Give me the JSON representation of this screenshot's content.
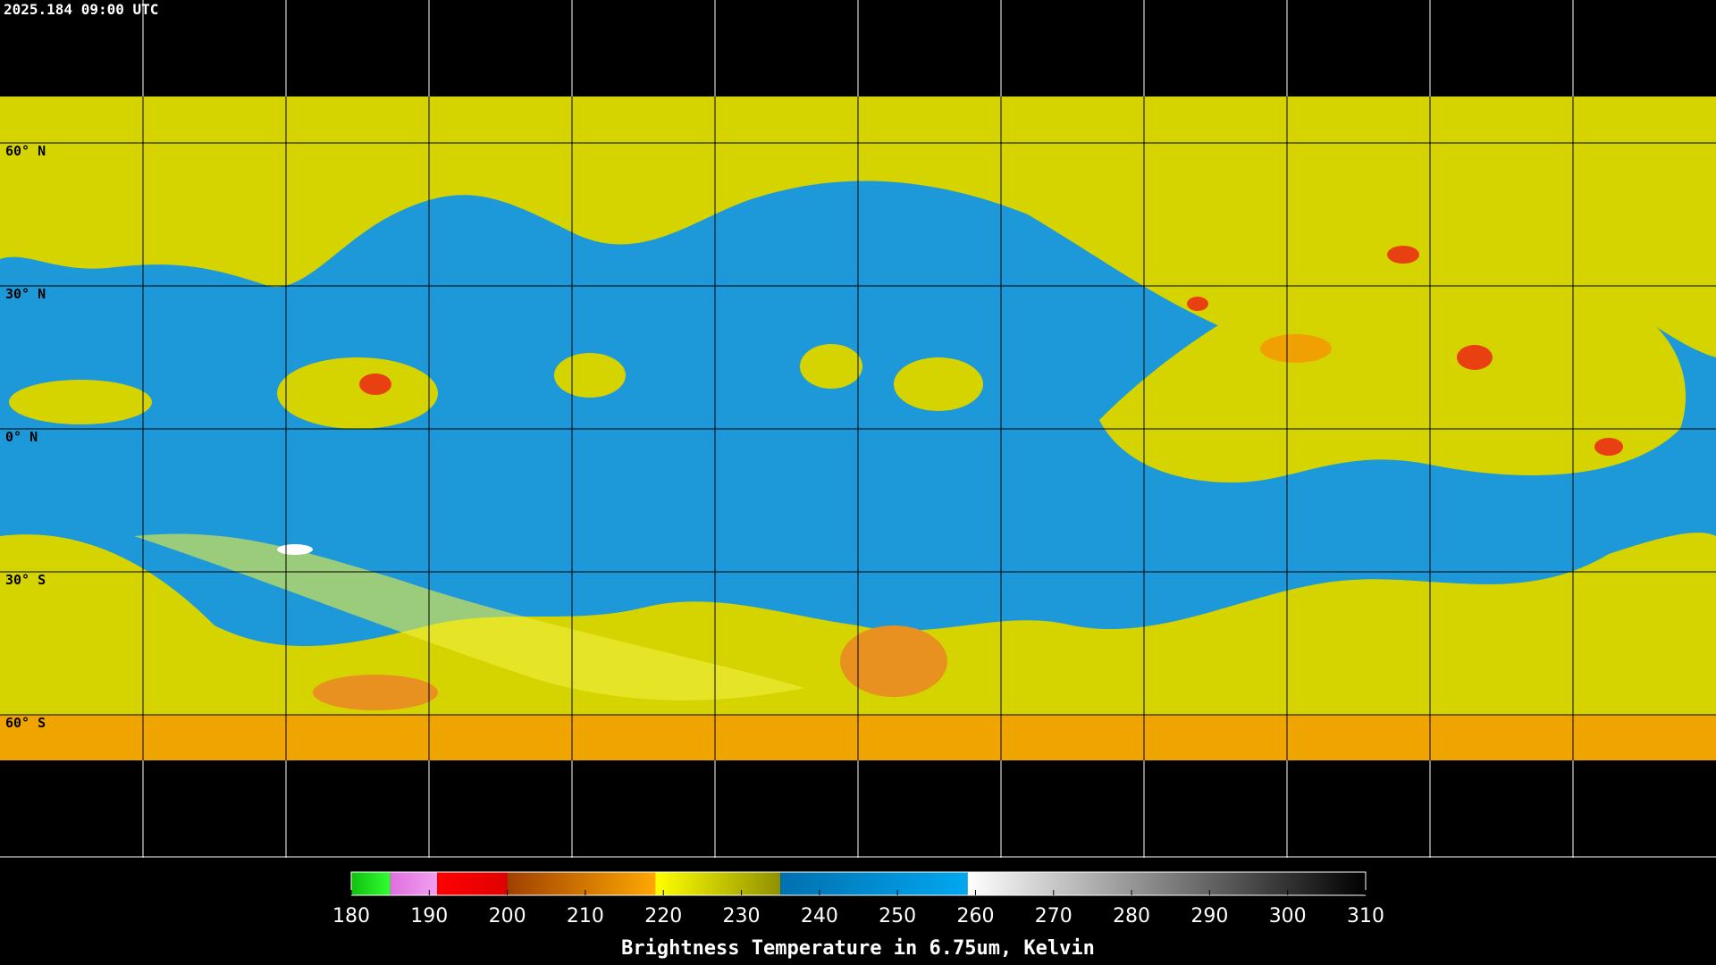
{
  "header": {
    "title": "2025.184 09:00 UTC"
  },
  "map": {
    "lat_labels": [
      "60° N",
      "30° N",
      "0° N",
      "30° S",
      "60° S"
    ]
  },
  "colorbar": {
    "label": "Brightness Temperature in 6.75um, Kelvin",
    "range": [
      180,
      310
    ],
    "ticks": [
      180,
      190,
      200,
      210,
      220,
      230,
      240,
      250,
      260,
      270,
      280,
      290,
      300,
      310
    ],
    "segments": [
      {
        "from": 180,
        "to": 185,
        "colors": [
          "#10c010",
          "#30ff30"
        ]
      },
      {
        "from": 185,
        "to": 191,
        "colors": [
          "#e070e0",
          "#f0a0f0"
        ]
      },
      {
        "from": 191,
        "to": 200,
        "colors": [
          "#ff0000",
          "#e00000"
        ]
      },
      {
        "from": 200,
        "to": 219,
        "colors": [
          "#a04000",
          "#ffa800"
        ]
      },
      {
        "from": 219,
        "to": 235,
        "colors": [
          "#ffff00",
          "#909000"
        ]
      },
      {
        "from": 235,
        "to": 259,
        "colors": [
          "#0070b0",
          "#00a8f0"
        ]
      },
      {
        "from": 259,
        "to": 310,
        "colors": [
          "#ffffff",
          "#000000"
        ]
      }
    ]
  }
}
